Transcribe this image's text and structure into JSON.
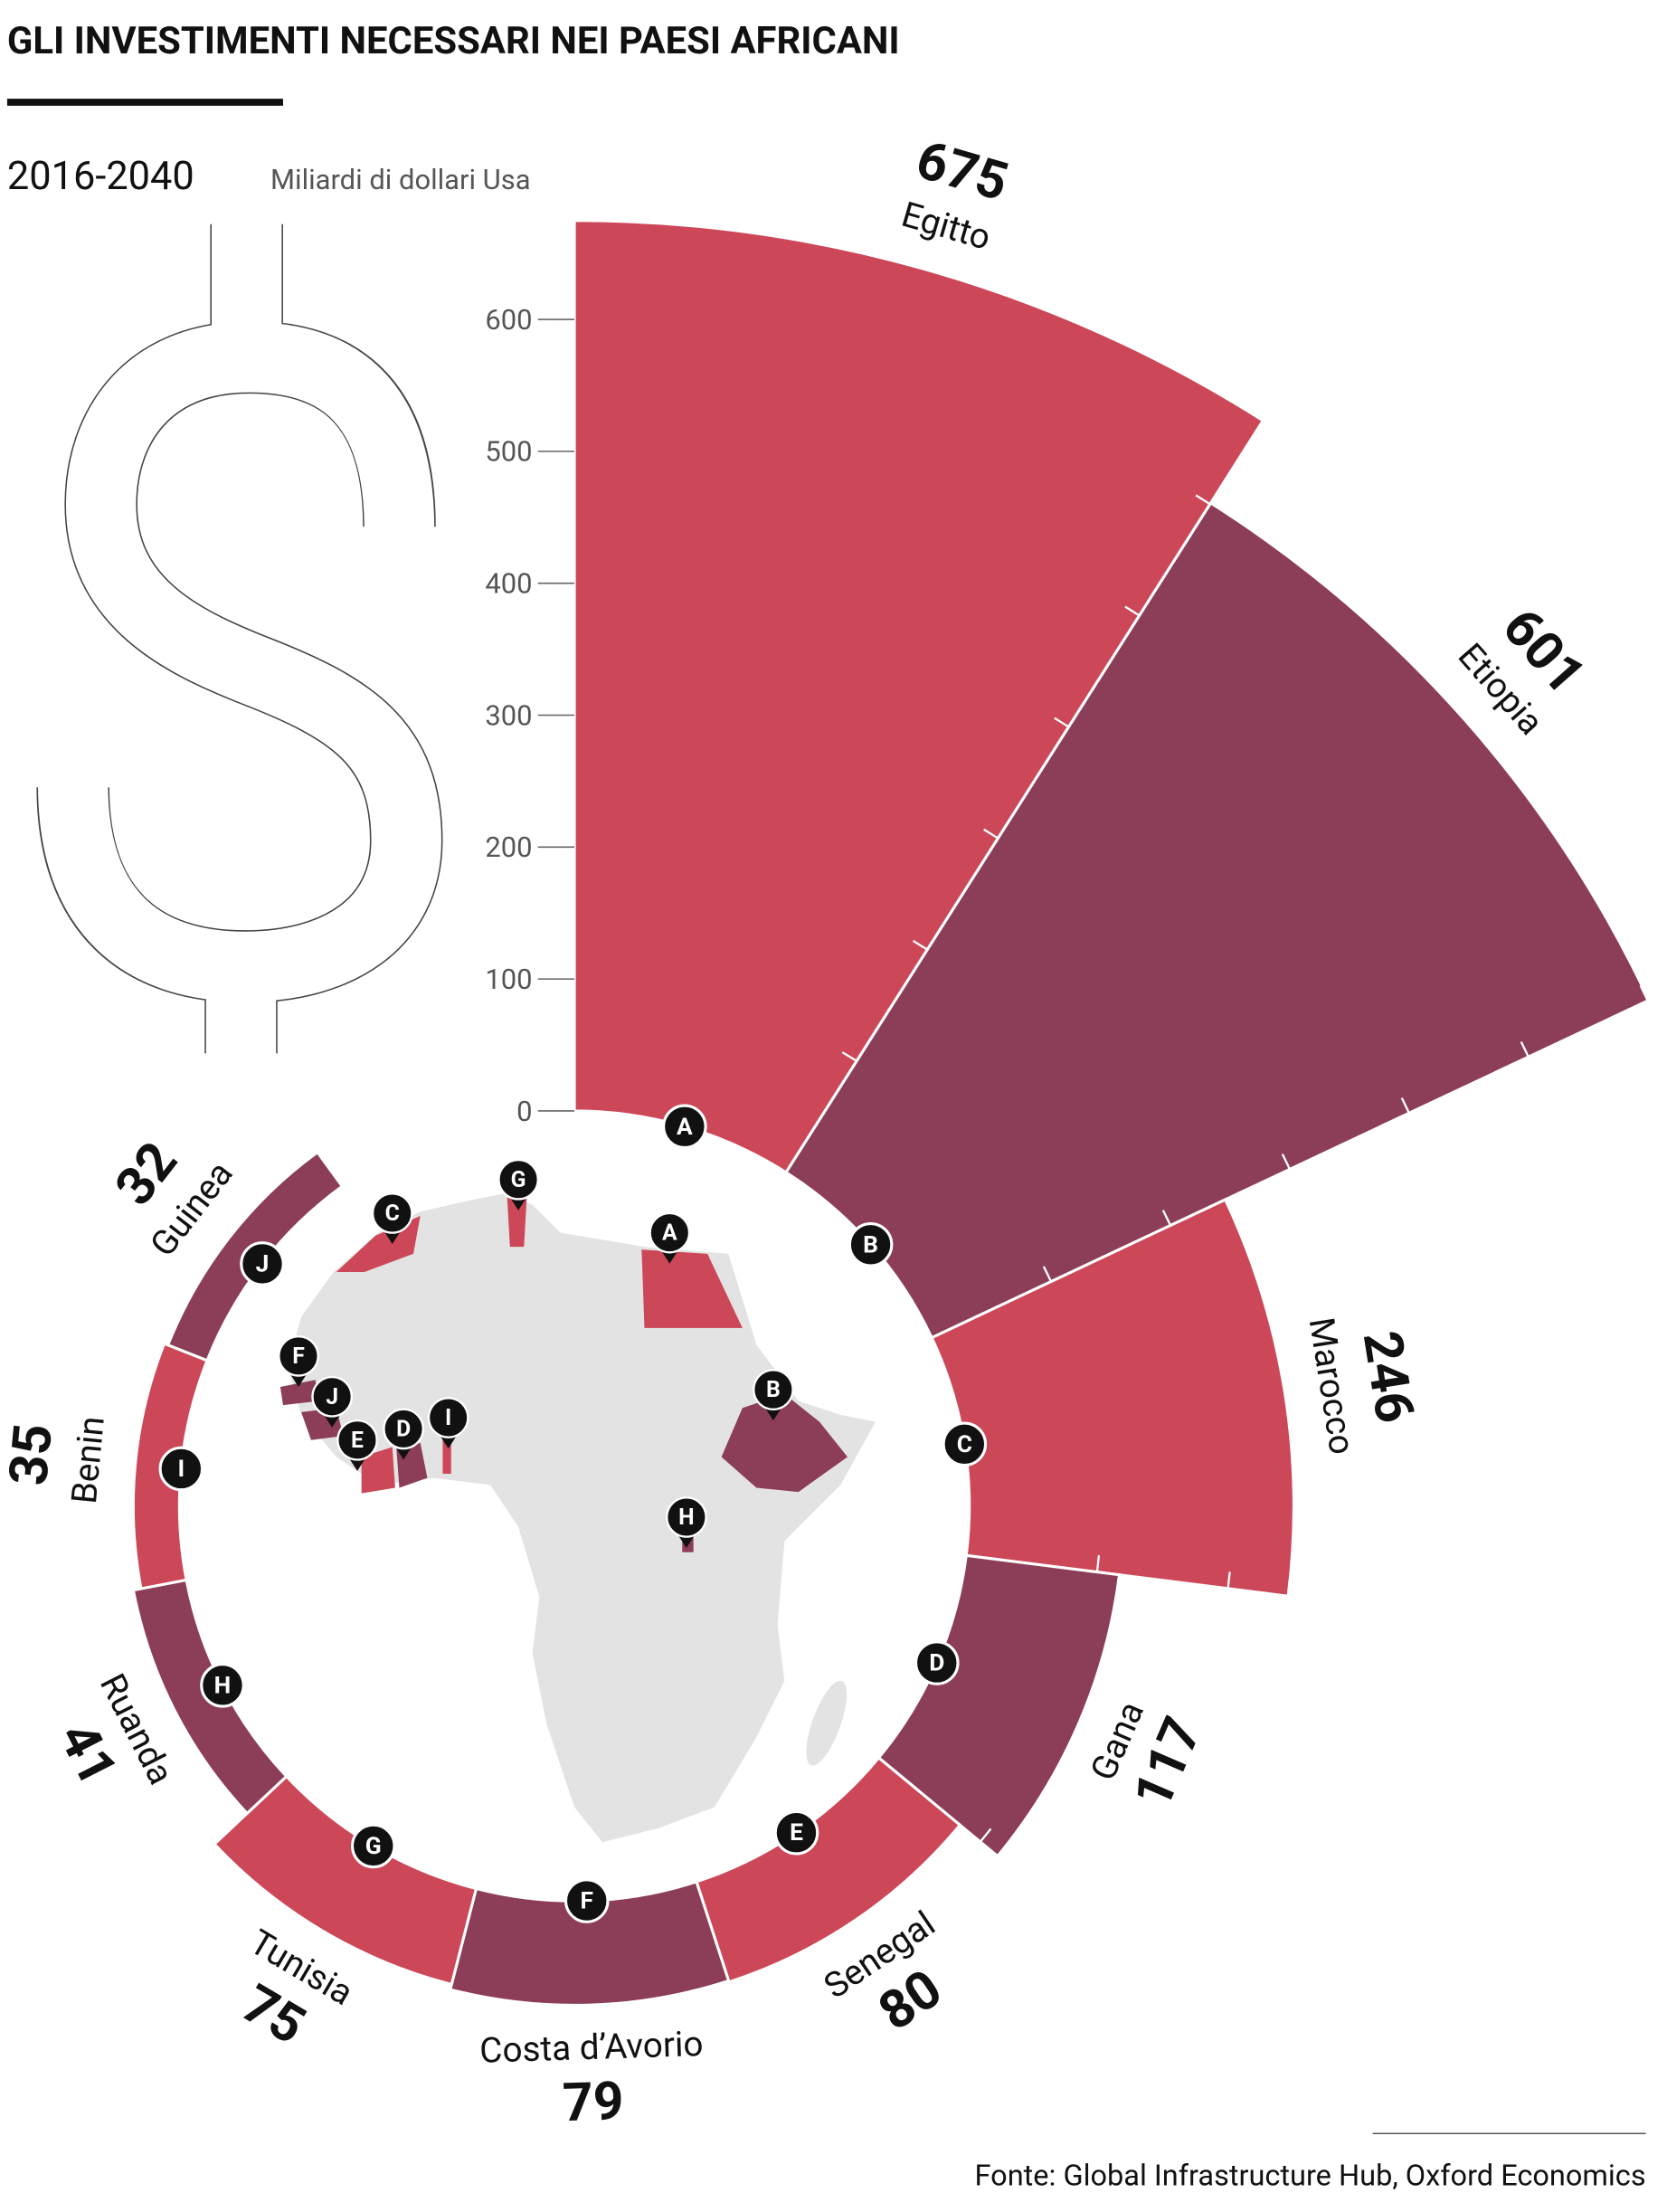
{
  "chart_data": {
    "type": "polar_bar",
    "title": "GLI INVESTIMENTI NECESSARI NEI PAESI AFRICANI",
    "subtitle": "2016-2040",
    "y_label": "Miliardi di dollari Usa",
    "source": "Fonte: Global Infrastructure Hub, Oxford Economics",
    "categories": [
      "Egitto",
      "Etiopia",
      "Marocco",
      "Gana",
      "Senegal",
      "Costa d’Avorio",
      "Tunisia",
      "Ruanda",
      "Benin",
      "Guinea"
    ],
    "codes": [
      "A",
      "B",
      "C",
      "D",
      "E",
      "F",
      "G",
      "H",
      "I",
      "J"
    ],
    "values": [
      675,
      601,
      246,
      117,
      80,
      79,
      75,
      41,
      35,
      32
    ],
    "colors": [
      "#cc4758",
      "#8c3d57",
      "#cc4758",
      "#8c3d57",
      "#cc4758",
      "#8c3d57",
      "#cc4758",
      "#8c3d57",
      "#cc4758",
      "#8c3d57"
    ],
    "ylim": [
      0,
      600
    ],
    "yticks": [
      0,
      100,
      200,
      300,
      400,
      500,
      600
    ]
  }
}
